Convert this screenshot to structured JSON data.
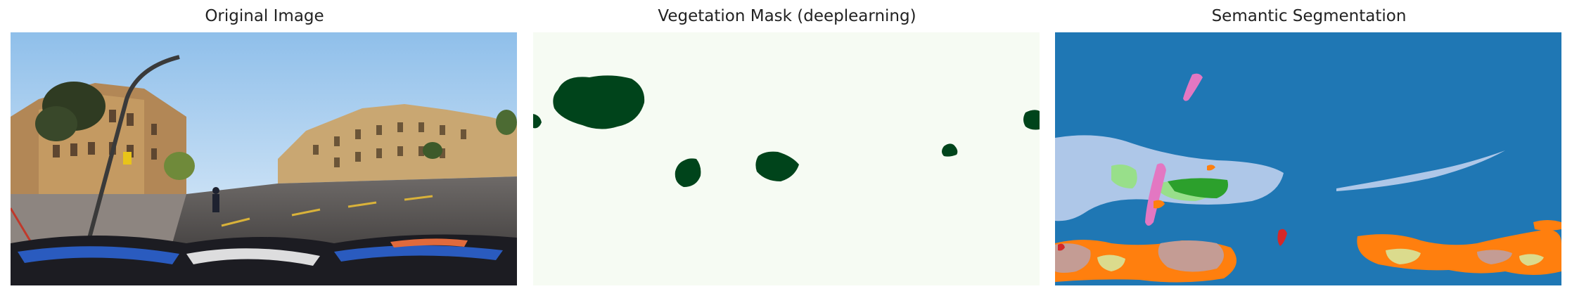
{
  "panels": [
    {
      "title": "Original Image"
    },
    {
      "title": "Vegetation Mask (deeplearning)"
    },
    {
      "title": "Semantic Segmentation"
    }
  ],
  "colors": {
    "sky_top": "#8fbfea",
    "sky_bottom": "#e8f2fb",
    "mask_background": "#f6fbf3",
    "mask_vegetation": "#00441b",
    "seg_background": "#1f77b4",
    "seg_lightblue": "#aec7e8",
    "seg_orange": "#ff7f0e",
    "seg_green": "#2ca02c",
    "seg_lightgreen": "#98df8a",
    "seg_pink": "#e377c2",
    "seg_tan": "#c49c94",
    "seg_yellow": "#dbdb8d",
    "seg_red": "#d62728"
  }
}
